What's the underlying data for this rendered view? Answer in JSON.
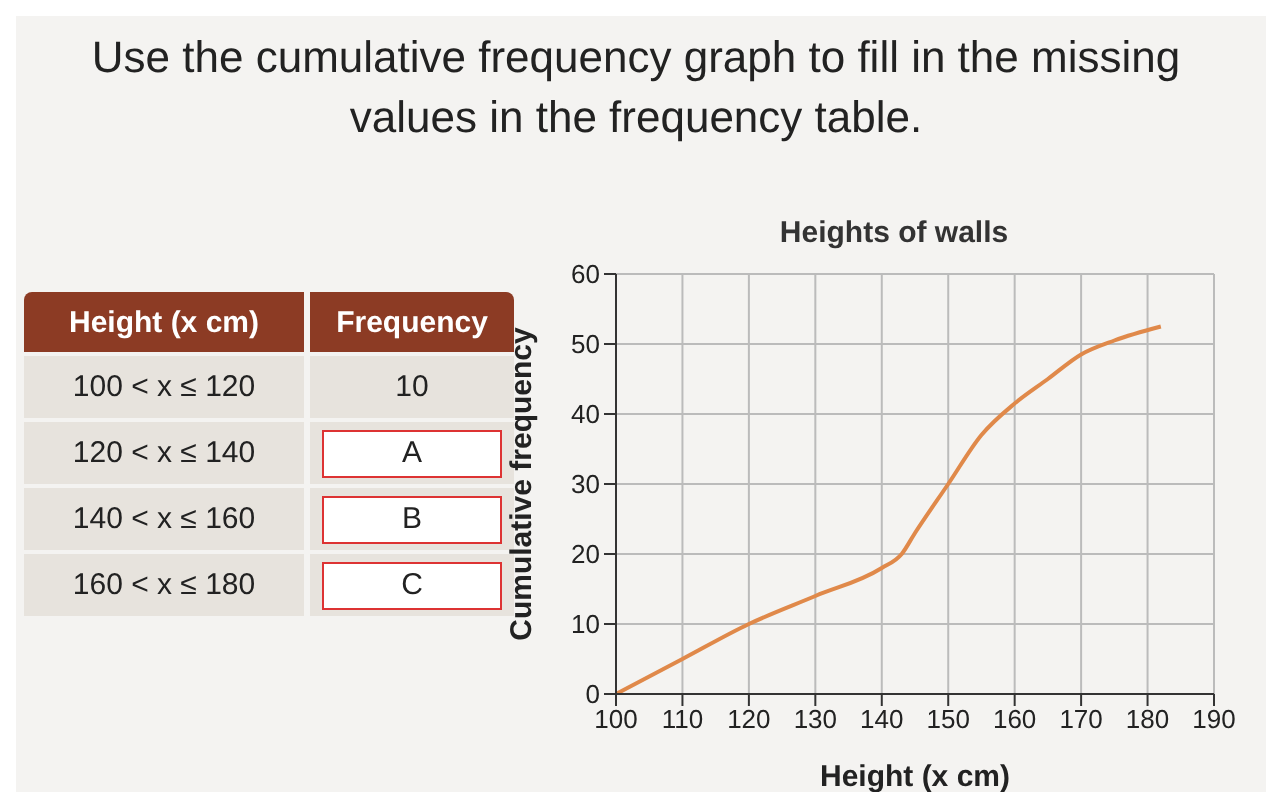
{
  "chart_data": [
    {
      "type": "other",
      "title": "Use the cumulative frequency graph to fill in the missing values in the frequency table.",
      "categories": [
        "Height (x cm)",
        "100 < x ≤ 120",
        "120 < x ≤ 140",
        "140 < x ≤ 160",
        "160 < x ≤ 180"
      ],
      "cell_labels": [
        "Frequency",
        "10",
        "A",
        "B",
        "C"
      ]
    },
    {
      "type": "line",
      "title": "Heights of walls",
      "xlabel": "Height (x cm)",
      "ylabel": "Cumulative frequency",
      "x": [
        100,
        110,
        120,
        130,
        140,
        143,
        145,
        150,
        155,
        160,
        165,
        170,
        175,
        182
      ],
      "series": [
        {
          "color": "#e0894a",
          "values": [
            0,
            5,
            10,
            14,
            18,
            20,
            23,
            30,
            37,
            41.5,
            45,
            48.5,
            50.5,
            52.5
          ]
        }
      ],
      "xlim": [
        100,
        190
      ],
      "xticks": [
        100,
        110,
        120,
        130,
        140,
        150,
        160,
        170,
        180,
        190
      ],
      "ylim": [
        0,
        60
      ],
      "yticks": [
        0,
        10,
        20,
        30,
        40,
        50,
        60
      ],
      "grid": true,
      "marker": "none"
    }
  ]
}
